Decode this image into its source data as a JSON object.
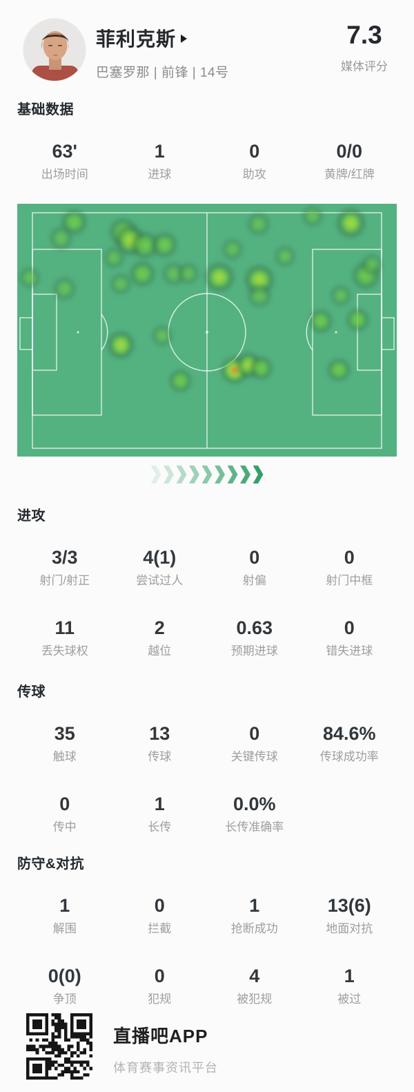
{
  "player": {
    "name": "菲利克斯",
    "meta": "巴塞罗那 | 前锋 | 14号",
    "rating": "7.3",
    "rating_label": "媒体评分"
  },
  "sections": [
    {
      "id": "basic",
      "title": "基础数据",
      "rows": [
        [
          {
            "value": "63'",
            "label": "出场时间"
          },
          {
            "value": "1",
            "label": "进球"
          },
          {
            "value": "0",
            "label": "助攻"
          },
          {
            "value": "0/0",
            "label": "黄牌/红牌"
          }
        ]
      ]
    },
    {
      "id": "attack",
      "title": "进攻",
      "rows": [
        [
          {
            "value": "3/3",
            "label": "射门/射正"
          },
          {
            "value": "4(1)",
            "label": "尝试过人"
          },
          {
            "value": "0",
            "label": "射偏"
          },
          {
            "value": "0",
            "label": "射门中框"
          }
        ],
        [
          {
            "value": "11",
            "label": "丢失球权"
          },
          {
            "value": "2",
            "label": "越位"
          },
          {
            "value": "0.63",
            "label": "预期进球"
          },
          {
            "value": "0",
            "label": "错失进球"
          }
        ]
      ]
    },
    {
      "id": "passing",
      "title": "传球",
      "rows": [
        [
          {
            "value": "35",
            "label": "触球"
          },
          {
            "value": "13",
            "label": "传球"
          },
          {
            "value": "0",
            "label": "关键传球"
          },
          {
            "value": "84.6%",
            "label": "传球成功率"
          }
        ],
        [
          {
            "value": "0",
            "label": "传中"
          },
          {
            "value": "1",
            "label": "长传"
          },
          {
            "value": "0.0%",
            "label": "长传准确率"
          }
        ]
      ]
    },
    {
      "id": "defense",
      "title": "防守&对抗",
      "rows": [
        [
          {
            "value": "1",
            "label": "解围"
          },
          {
            "value": "0",
            "label": "拦截"
          },
          {
            "value": "1",
            "label": "抢断成功"
          },
          {
            "value": "13(6)",
            "label": "地面对抗"
          }
        ],
        [
          {
            "value": "0(0)",
            "label": "争顶"
          },
          {
            "value": "0",
            "label": "犯规"
          },
          {
            "value": "4",
            "label": "被犯规"
          },
          {
            "value": "1",
            "label": "被过"
          }
        ]
      ]
    }
  ],
  "heatmap": {
    "pitch_color": "#54b280",
    "line_color": "rgba(255,255,255,0.8)",
    "blobs": [
      [
        15.0,
        7.3,
        12,
        0.7
      ],
      [
        11.5,
        13.7,
        11,
        0.6
      ],
      [
        27.9,
        11.3,
        13,
        0.7
      ],
      [
        29.7,
        14.5,
        14,
        0.85
      ],
      [
        33.6,
        16.3,
        13,
        0.7
      ],
      [
        38.8,
        16.3,
        12,
        0.65
      ],
      [
        25.5,
        21.3,
        10,
        0.55
      ],
      [
        33.0,
        27.7,
        12,
        0.65
      ],
      [
        41.2,
        27.7,
        11,
        0.6
      ],
      [
        45.1,
        27.7,
        10,
        0.6
      ],
      [
        3.3,
        29.1,
        10,
        0.6
      ],
      [
        12.4,
        33.6,
        11,
        0.6
      ],
      [
        27.3,
        31.8,
        10,
        0.55
      ],
      [
        63.6,
        8.1,
        11,
        0.6
      ],
      [
        77.9,
        4.9,
        10,
        0.55
      ],
      [
        87.9,
        7.7,
        14,
        0.85
      ],
      [
        56.8,
        18.1,
        10,
        0.55
      ],
      [
        70.6,
        20.9,
        10,
        0.55
      ],
      [
        53.3,
        29.1,
        14,
        0.8
      ],
      [
        63.8,
        30.0,
        14,
        0.9
      ],
      [
        63.8,
        36.5,
        11,
        0.6
      ],
      [
        91.8,
        28.5,
        13,
        0.7
      ],
      [
        93.5,
        24.0,
        10,
        0.6
      ],
      [
        85.3,
        36.3,
        10,
        0.55
      ],
      [
        80.0,
        46.4,
        11,
        0.65
      ],
      [
        89.7,
        45.9,
        11,
        0.65
      ],
      [
        84.7,
        65.7,
        11,
        0.65
      ],
      [
        27.3,
        55.9,
        13,
        0.85
      ],
      [
        38.1,
        52.3,
        10,
        0.6
      ],
      [
        43.0,
        70.0,
        11,
        0.65
      ],
      [
        57.3,
        65.9,
        13,
        0.95
      ],
      [
        60.9,
        63.7,
        12,
        0.8
      ],
      [
        64.3,
        65.0,
        11,
        0.7
      ]
    ]
  },
  "chevrons": {
    "count": 9,
    "color": "#35a06a"
  },
  "footer": {
    "app_name": "直播吧APP",
    "tagline": "体育赛事资讯平台",
    "qr_icon": "qr-code",
    "qr_color": "#161616"
  }
}
